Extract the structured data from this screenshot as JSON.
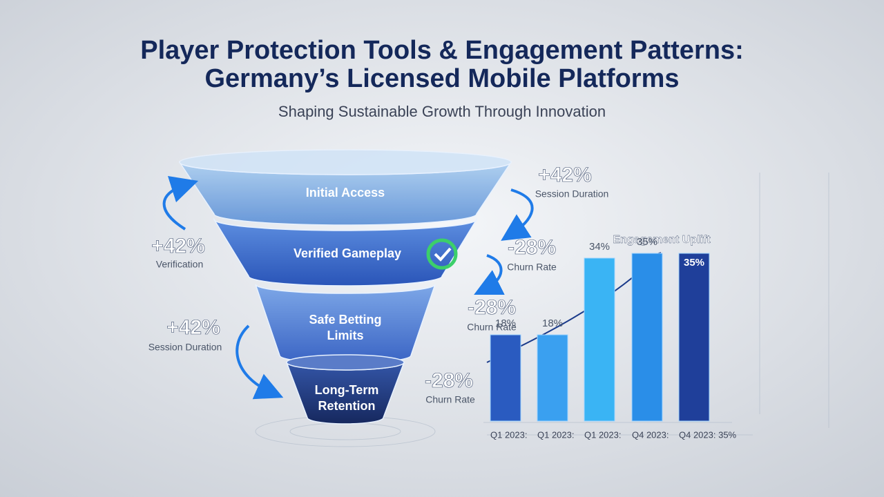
{
  "header": {
    "title_line1": "Player Protection Tools & Engagement Patterns:",
    "title_line2": "Germany’s Licensed Mobile Platforms",
    "subtitle": "Shaping Sustainable Growth Through Innovation"
  },
  "funnel": {
    "stages": [
      "Initial Access",
      "Verified Gameplay",
      "Safe Betting",
      "Limits",
      "Long-Term",
      "Retention"
    ]
  },
  "annotations": [
    {
      "value": "+42%",
      "label": "Session Duration"
    },
    {
      "value": "+42%",
      "label": "Verification"
    },
    {
      "value": "-28%",
      "label": "Churn Rate"
    },
    {
      "value": "-28%",
      "label": "Churn Rate"
    },
    {
      "value": "+42%",
      "label": "Session Duration"
    },
    {
      "value": "-28%",
      "label": "Churn Rate"
    }
  ],
  "chart_data": {
    "type": "bar",
    "title": "Engagement Uplift",
    "categories": [
      "Q1 2023:",
      "Q1 2023:",
      "Q1 2023:",
      "Q4 2023:",
      "Q4 2023: 35%"
    ],
    "values": [
      18,
      18,
      34,
      35,
      35
    ],
    "value_labels": [
      "18%",
      "18%",
      "34%",
      "35%",
      "35%"
    ],
    "colors": [
      "#2a5bc0",
      "#3aa0f0",
      "#3ab4f4",
      "#2a8ee8",
      "#1f3f9a"
    ]
  }
}
